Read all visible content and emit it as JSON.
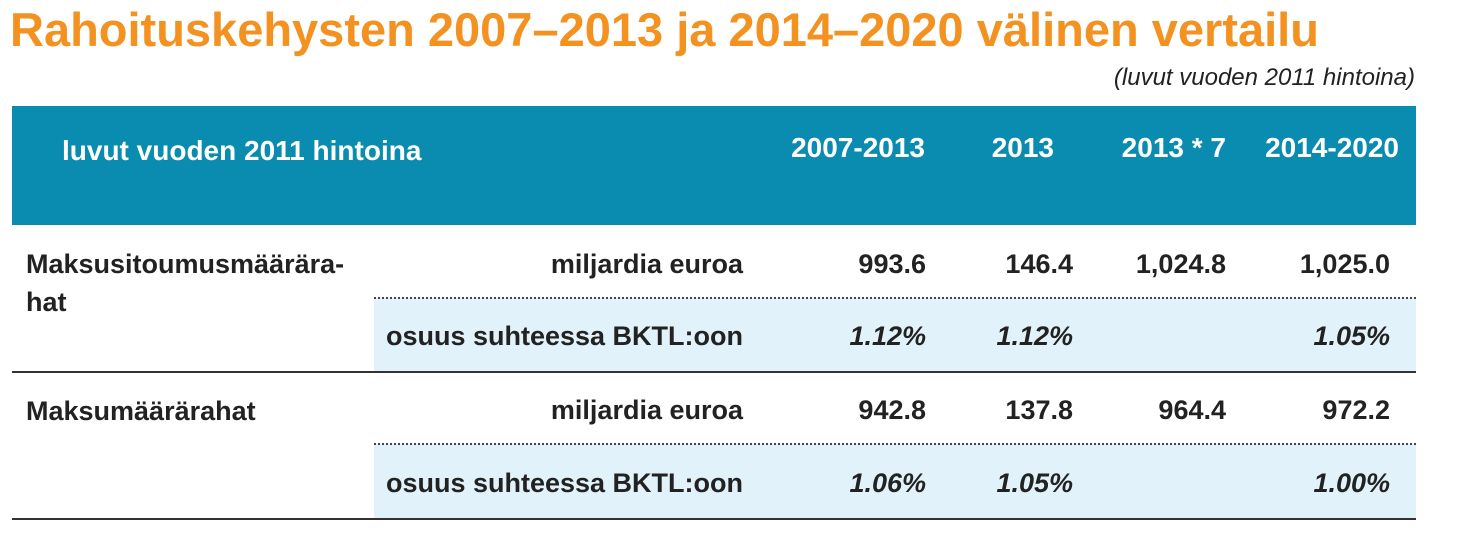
{
  "title": "Rahoituskehysten 2007–2013 ja 2014–2020 välinen vertailu",
  "subtitle": "(luvut vuoden 2011 hintoina)",
  "colors": {
    "title": "#f39220",
    "header_bg": "#0a8bb0",
    "band_bg": "#e1f2fa"
  },
  "table": {
    "headers": [
      "luvut vuoden 2011 hintoina",
      "2007-2013",
      "2013",
      "2013 * 7",
      "2014-2020"
    ],
    "rows": [
      {
        "label": "Maksusitoumusmäärärahat",
        "label_lines": [
          "Maksusitoumusmäärära-",
          "hat"
        ],
        "sub": [
          {
            "unit": "miljardia euroa",
            "values": [
              "993.6",
              "146.4",
              "1,024.8",
              "1,025.0"
            ]
          },
          {
            "unit": "osuus suhteessa BKTL:oon",
            "values": [
              "1.12%",
              "1.12%",
              "",
              "1.05%"
            ]
          }
        ]
      },
      {
        "label": "Maksumäärärahat",
        "sub": [
          {
            "unit": "miljardia euroa",
            "values": [
              "942.8",
              "137.8",
              "964.4",
              "972.2"
            ]
          },
          {
            "unit": "osuus suhteessa BKTL:oon",
            "values": [
              "1.06%",
              "1.05%",
              "",
              "1.00%"
            ]
          }
        ]
      }
    ]
  }
}
